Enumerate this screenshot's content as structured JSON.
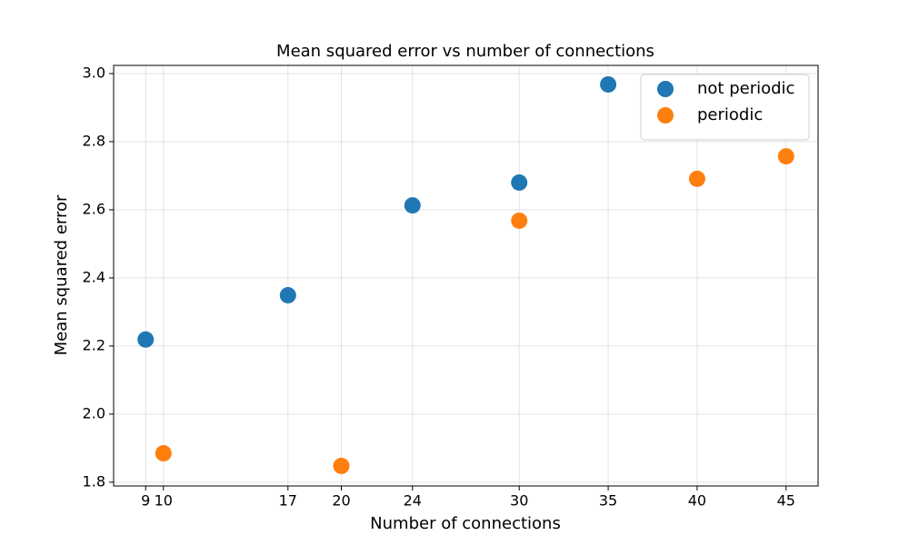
{
  "chart_data": {
    "type": "scatter",
    "title": "Mean squared error vs number of connections",
    "x_label": "Number of connections",
    "y_label": "Mean squared error",
    "series": [
      {
        "name": "not periodic",
        "color": "#1f77b4",
        "x": [
          9,
          17,
          24,
          30,
          35
        ],
        "values": [
          2.219,
          2.349,
          2.613,
          2.68,
          2.968
        ]
      },
      {
        "name": "periodic",
        "color": "#ff7f0e",
        "x": [
          10,
          20,
          30,
          40,
          45
        ],
        "values": [
          1.885,
          1.848,
          2.568,
          2.691,
          2.757
        ]
      }
    ],
    "xlim": [
      7.2,
      46.8
    ],
    "xticks": [
      9,
      10,
      17,
      20,
      24,
      30,
      35,
      40,
      45
    ],
    "ylim": [
      1.789,
      3.024
    ],
    "yticks": [
      1.8,
      {
        "value": 2,
        "label": "2.0"
      },
      2.2,
      2.4,
      2.6,
      2.8,
      {
        "value": 3,
        "label": "3.0"
      }
    ],
    "grid": true,
    "legend": "upper-right"
  }
}
